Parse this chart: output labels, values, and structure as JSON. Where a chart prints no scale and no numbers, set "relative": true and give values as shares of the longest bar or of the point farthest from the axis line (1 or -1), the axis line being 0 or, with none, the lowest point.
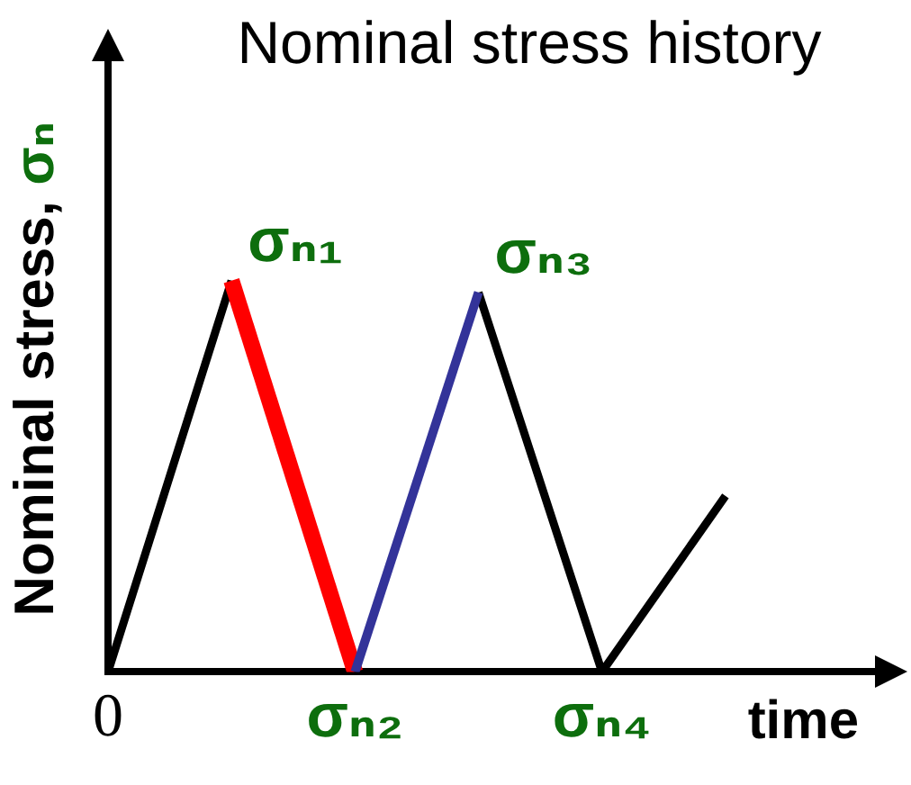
{
  "chart_data": {
    "type": "line",
    "title": "Nominal stress history",
    "xlabel": "time",
    "ylabel": "Nominal stress, σₙ",
    "relative": true,
    "categories": [
      "0",
      null,
      "σₙ₂",
      null,
      "σₙ₄",
      null
    ],
    "series": [
      {
        "color": "#000000",
        "values": [
          0,
          1,
          null,
          0.97,
          0,
          0.45
        ]
      },
      {
        "color": "#ff0000",
        "values": [
          null,
          1,
          0,
          null,
          null,
          null
        ]
      },
      {
        "color": "#333399",
        "values": [
          null,
          null,
          0,
          0.97,
          null,
          null
        ]
      }
    ],
    "annotations": [
      "σₙ₁",
      "σₙ₃"
    ]
  }
}
